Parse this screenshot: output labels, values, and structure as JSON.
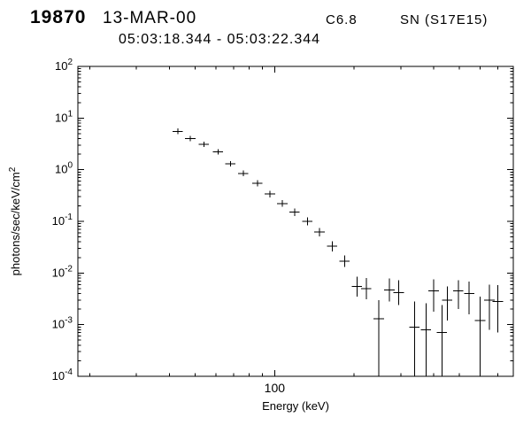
{
  "header": {
    "flare_number": "19870",
    "date": "13-MAR-00",
    "goes_class": "C6.8",
    "flare_type_position": "SN (S17E15)",
    "time_range": "05:03:18.344 - 05:03:22.344"
  },
  "colors": {
    "foreground": "#000000",
    "background": "#ffffff"
  },
  "chart_data": {
    "type": "scatter",
    "title": "",
    "xlabel": "Energy (keV)",
    "ylabel": {
      "base": "photons/sec/keV/cm",
      "sup": "2"
    },
    "xscale": "log",
    "yscale": "log",
    "xlim": [
      18,
      800
    ],
    "ylim": [
      0.0001,
      100
    ],
    "grid": false,
    "legend": "none",
    "x_major_ticks": [
      100
    ],
    "x_tick_labels": [
      "100"
    ],
    "y_tick_base": "10",
    "y_tick_exponents": [
      2,
      1,
      0,
      -1,
      -2,
      -3,
      -4
    ],
    "bin_halfwidth_frac": 0.045,
    "points": [
      {
        "e": 43,
        "f": 5.5,
        "lo": 4.9,
        "hi": 6.3
      },
      {
        "e": 48,
        "f": 4.0,
        "lo": 3.55,
        "hi": 4.5
      },
      {
        "e": 54,
        "f": 3.1,
        "lo": 2.75,
        "hi": 3.5
      },
      {
        "e": 61,
        "f": 2.2,
        "lo": 1.95,
        "hi": 2.5
      },
      {
        "e": 68,
        "f": 1.3,
        "lo": 1.15,
        "hi": 1.47
      },
      {
        "e": 76,
        "f": 0.85,
        "lo": 0.75,
        "hi": 0.97
      },
      {
        "e": 86,
        "f": 0.55,
        "lo": 0.48,
        "hi": 0.63
      },
      {
        "e": 96,
        "f": 0.34,
        "lo": 0.29,
        "hi": 0.39
      },
      {
        "e": 107,
        "f": 0.22,
        "lo": 0.19,
        "hi": 0.26
      },
      {
        "e": 119,
        "f": 0.15,
        "lo": 0.127,
        "hi": 0.177
      },
      {
        "e": 133,
        "f": 0.1,
        "lo": 0.084,
        "hi": 0.119
      },
      {
        "e": 148,
        "f": 0.062,
        "lo": 0.051,
        "hi": 0.075
      },
      {
        "e": 165,
        "f": 0.033,
        "lo": 0.026,
        "hi": 0.041
      },
      {
        "e": 184,
        "f": 0.017,
        "lo": 0.013,
        "hi": 0.022
      },
      {
        "e": 205,
        "f": 0.0055,
        "lo": 0.0035,
        "hi": 0.0085
      },
      {
        "e": 222,
        "f": 0.005,
        "lo": 0.0031,
        "hi": 0.008
      },
      {
        "e": 248,
        "f": 0.0013,
        "lo": 0.0001,
        "hi": 0.003
      },
      {
        "e": 272,
        "f": 0.0047,
        "lo": 0.0028,
        "hi": 0.0078
      },
      {
        "e": 295,
        "f": 0.0042,
        "lo": 0.0024,
        "hi": 0.0072
      },
      {
        "e": 338,
        "f": 0.0009,
        "lo": 0.0001,
        "hi": 0.0028
      },
      {
        "e": 374,
        "f": 0.0008,
        "lo": 0.0001,
        "hi": 0.0026
      },
      {
        "e": 400,
        "f": 0.0045,
        "lo": 0.0018,
        "hi": 0.0075
      },
      {
        "e": 430,
        "f": 0.0007,
        "lo": 0.0001,
        "hi": 0.0024
      },
      {
        "e": 450,
        "f": 0.003,
        "lo": 0.0012,
        "hi": 0.0055
      },
      {
        "e": 495,
        "f": 0.0045,
        "lo": 0.002,
        "hi": 0.0073
      },
      {
        "e": 545,
        "f": 0.004,
        "lo": 0.0016,
        "hi": 0.0068
      },
      {
        "e": 600,
        "f": 0.0012,
        "lo": 0.0001,
        "hi": 0.0035
      },
      {
        "e": 650,
        "f": 0.003,
        "lo": 0.0008,
        "hi": 0.006
      },
      {
        "e": 700,
        "f": 0.0028,
        "lo": 0.0007,
        "hi": 0.0058
      }
    ]
  }
}
